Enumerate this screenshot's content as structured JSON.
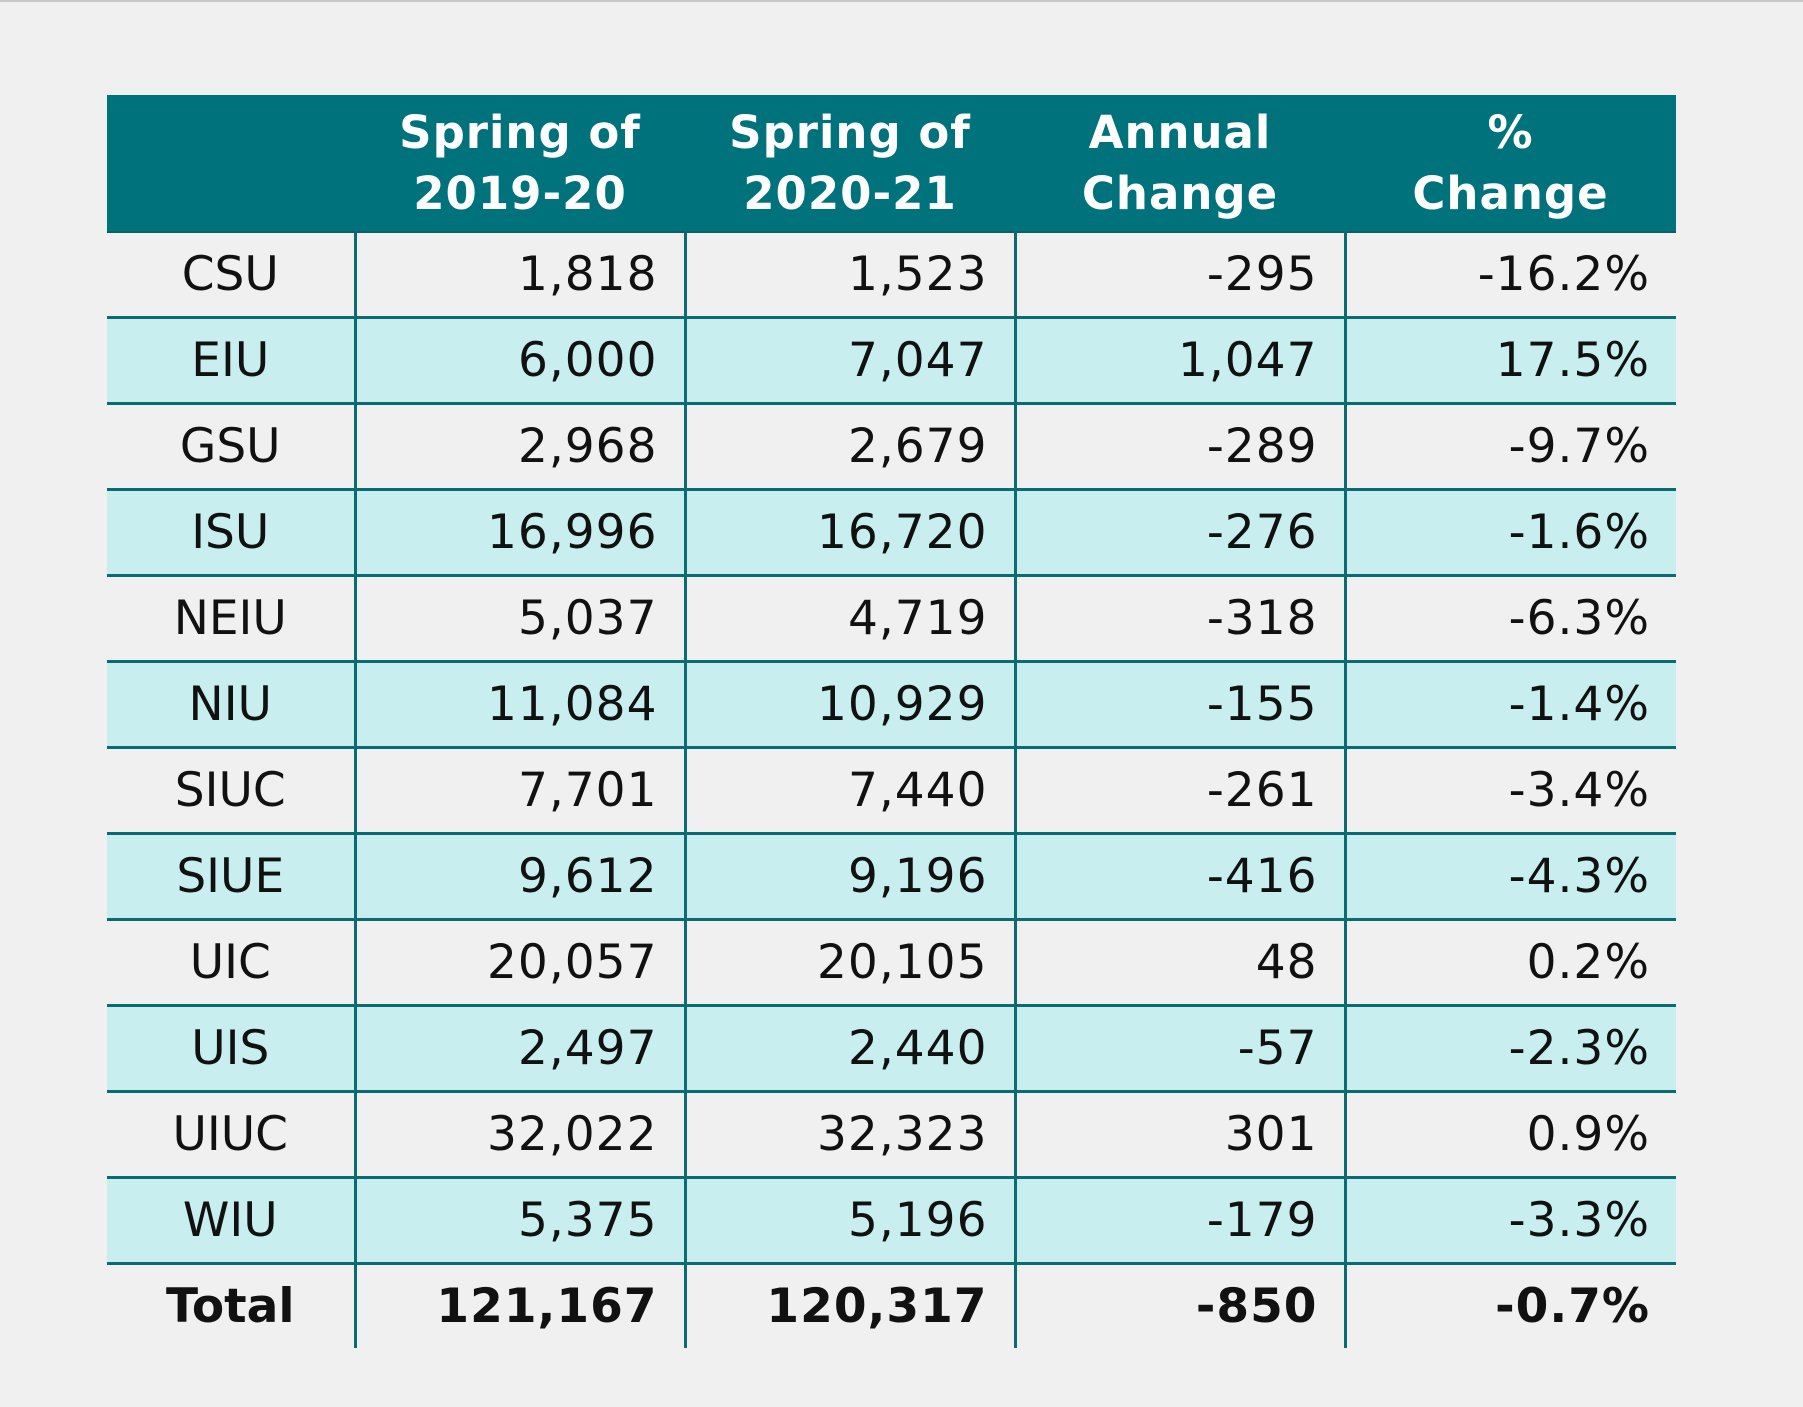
{
  "chart_data": {
    "type": "table",
    "columns": [
      "",
      "Spring of 2019-20",
      "Spring of 2020-21",
      "Annual Change",
      "% Change"
    ],
    "header": [
      {
        "line1": "",
        "line2": ""
      },
      {
        "line1": "Spring of",
        "line2": "2019-20"
      },
      {
        "line1": "Spring of",
        "line2": "2020-21"
      },
      {
        "line1": "Annual",
        "line2": "Change"
      },
      {
        "line1": "%",
        "line2": "Change"
      }
    ],
    "rows": [
      {
        "name": "CSU",
        "spring_2019_20": "1,818",
        "spring_2020_21": "1,523",
        "annual_change": "-295",
        "pct_change": "-16.2%"
      },
      {
        "name": "EIU",
        "spring_2019_20": "6,000",
        "spring_2020_21": "7,047",
        "annual_change": "1,047",
        "pct_change": "17.5%"
      },
      {
        "name": "GSU",
        "spring_2019_20": "2,968",
        "spring_2020_21": "2,679",
        "annual_change": "-289",
        "pct_change": "-9.7%"
      },
      {
        "name": "ISU",
        "spring_2019_20": "16,996",
        "spring_2020_21": "16,720",
        "annual_change": "-276",
        "pct_change": "-1.6%"
      },
      {
        "name": "NEIU",
        "spring_2019_20": "5,037",
        "spring_2020_21": "4,719",
        "annual_change": "-318",
        "pct_change": "-6.3%"
      },
      {
        "name": "NIU",
        "spring_2019_20": "11,084",
        "spring_2020_21": "10,929",
        "annual_change": "-155",
        "pct_change": "-1.4%"
      },
      {
        "name": "SIUC",
        "spring_2019_20": "7,701",
        "spring_2020_21": "7,440",
        "annual_change": "-261",
        "pct_change": "-3.4%"
      },
      {
        "name": "SIUE",
        "spring_2019_20": "9,612",
        "spring_2020_21": "9,196",
        "annual_change": "-416",
        "pct_change": "-4.3%"
      },
      {
        "name": "UIC",
        "spring_2019_20": "20,057",
        "spring_2020_21": "20,105",
        "annual_change": "48",
        "pct_change": "0.2%"
      },
      {
        "name": "UIS",
        "spring_2019_20": "2,497",
        "spring_2020_21": "2,440",
        "annual_change": "-57",
        "pct_change": "-2.3%"
      },
      {
        "name": "UIUC",
        "spring_2019_20": "32,022",
        "spring_2020_21": "32,323",
        "annual_change": "301",
        "pct_change": "0.9%"
      },
      {
        "name": "WIU",
        "spring_2019_20": "5,375",
        "spring_2020_21": "5,196",
        "annual_change": "-179",
        "pct_change": "-3.3%"
      }
    ],
    "total": {
      "name": "Total",
      "spring_2019_20": "121,167",
      "spring_2020_21": "120,317",
      "annual_change": "-850",
      "pct_change": "-0.7%"
    }
  },
  "colors": {
    "header_bg": "#00727b",
    "header_text": "#ffffff",
    "band_row_bg": "#c8eeef",
    "page_bg": "#f0f0f0",
    "grid_line": "#0b6b73"
  }
}
